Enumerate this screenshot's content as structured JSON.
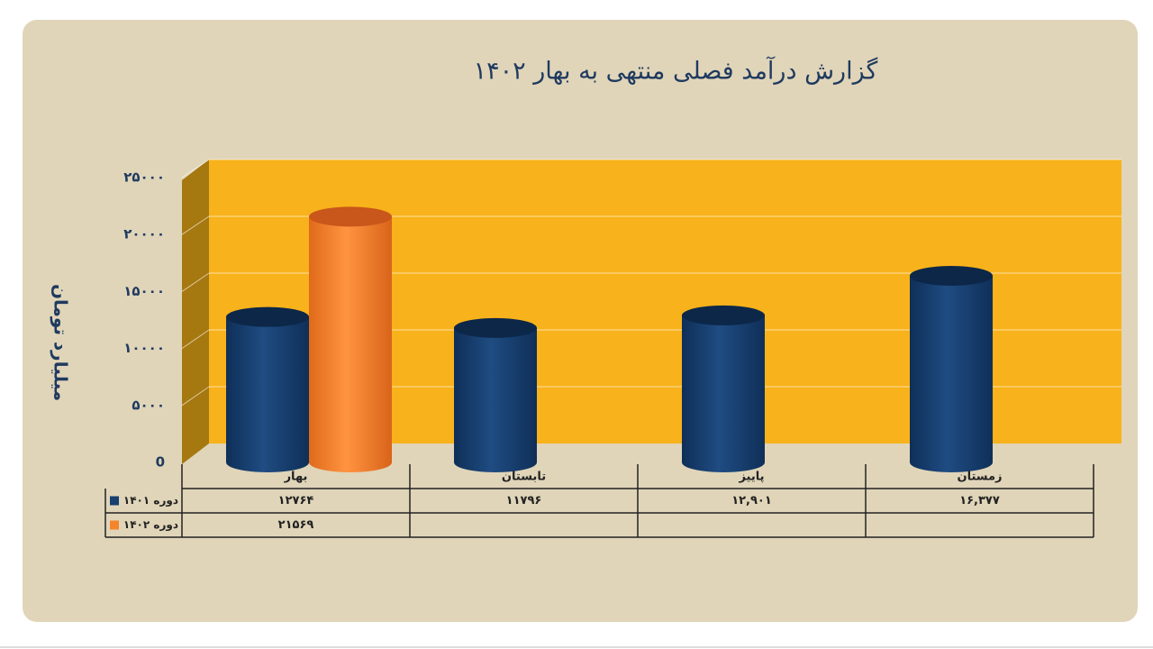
{
  "chart_data": {
    "type": "bar",
    "title": "گزارش درآمد فصلی منتهی به بهار ۱۴۰۲",
    "y_label": "میلیارد تومان",
    "categories": [
      "بهار",
      "تابستان",
      "پاییز",
      "زمستان"
    ],
    "series": [
      {
        "name": "دوره ۱۴۰۱",
        "color": "#173f70",
        "values": [
          12764,
          11796,
          12901,
          16377
        ],
        "value_labels": [
          "۱۲۷۶۴",
          "۱۱۷۹۶",
          "۱۲,۹۰۱",
          "۱۶,۳۷۷"
        ]
      },
      {
        "name": "دوره ۱۴۰۲",
        "color": "#f5852c",
        "values": [
          21569,
          null,
          null,
          null
        ],
        "value_labels": [
          "۲۱۵۶۹",
          null,
          null,
          null
        ]
      }
    ],
    "ylim": [
      0,
      25000
    ],
    "yticks": [
      0,
      {
        "value": 5000,
        "label": "۵۰۰۰"
      },
      {
        "value": 10000,
        "label": "۱۰۰۰۰"
      },
      {
        "value": 15000,
        "label": "۱۵۰۰۰"
      },
      {
        "value": 20000,
        "label": "۲۰۰۰۰"
      },
      {
        "value": 25000,
        "label": "۲۵۰۰۰"
      }
    ],
    "grid": true
  }
}
